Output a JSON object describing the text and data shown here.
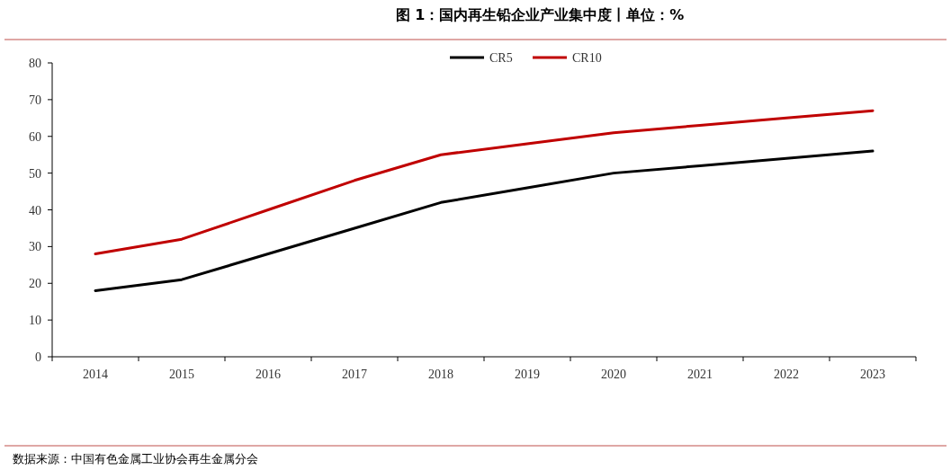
{
  "chart_data": {
    "type": "line",
    "title": "图 1：国内再生铅企业产业集中度丨单位：%",
    "categories": [
      "2014",
      "2015",
      "2016",
      "2017",
      "2018",
      "2019",
      "2020",
      "2021",
      "2022",
      "2023"
    ],
    "series": [
      {
        "name": "CR5",
        "color": "#000000",
        "values": [
          18,
          21,
          28,
          35,
          42,
          46,
          50,
          52,
          54,
          56
        ]
      },
      {
        "name": "CR10",
        "color": "#c00000",
        "values": [
          28,
          32,
          40,
          48,
          55,
          58,
          61,
          63,
          65,
          67
        ]
      }
    ],
    "ylim": [
      0,
      80
    ],
    "yticks": [
      0,
      10,
      20,
      30,
      40,
      50,
      60,
      70,
      80
    ],
    "legend": "top",
    "annotations": [
      "数据来源：中国有色金属工业协会再生金属分会"
    ]
  }
}
